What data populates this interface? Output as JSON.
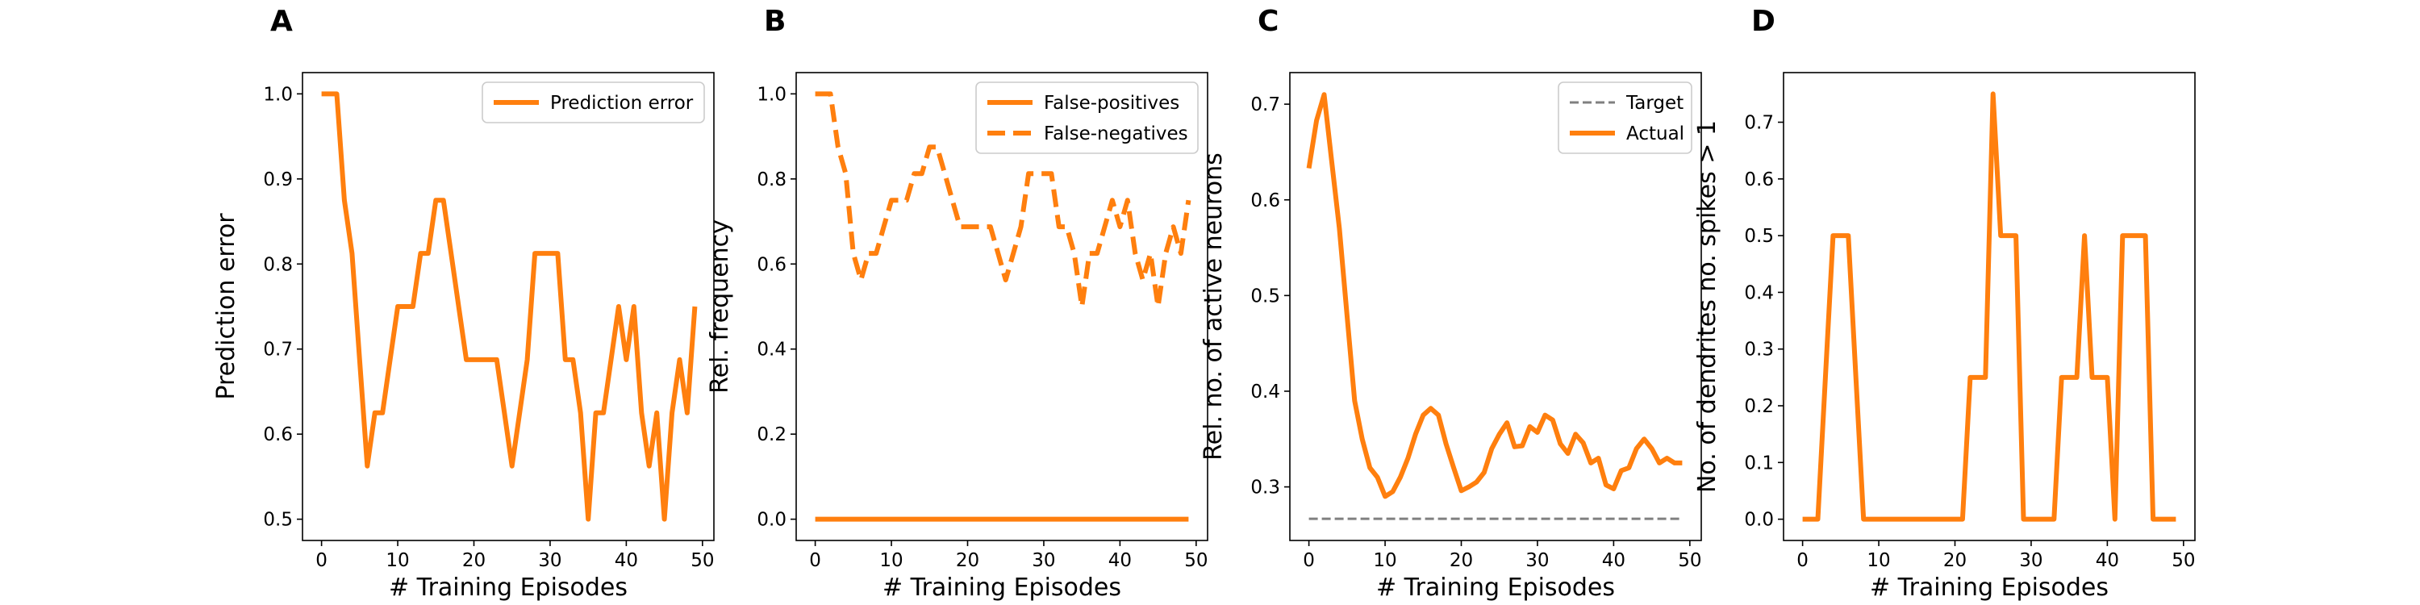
{
  "chart_data": [
    {
      "panel": "A",
      "type": "line",
      "xlabel": "# Training Episodes",
      "ylabel": "Prediction error",
      "xlim": [
        -2.5,
        51.5
      ],
      "ylim": [
        0.475,
        1.025
      ],
      "xticks": [
        0,
        10,
        20,
        30,
        40,
        50
      ],
      "yticks": [
        0.5,
        0.6,
        0.7,
        0.8,
        0.9,
        1.0
      ],
      "ytick_labels": [
        "0.5",
        "0.6",
        "0.7",
        "0.8",
        "0.9",
        "1.0"
      ],
      "legend": {
        "position": "top-right"
      },
      "series": [
        {
          "name": "Prediction error",
          "style": "solid",
          "x": [
            0,
            1,
            2,
            3,
            4,
            5,
            6,
            7,
            8,
            9,
            10,
            11,
            12,
            13,
            14,
            15,
            16,
            17,
            18,
            19,
            20,
            21,
            22,
            23,
            24,
            25,
            26,
            27,
            28,
            29,
            30,
            31,
            32,
            33,
            34,
            35,
            36,
            37,
            38,
            39,
            40,
            41,
            42,
            43,
            44,
            45,
            46,
            47,
            48,
            49
          ],
          "y": [
            1.0,
            1.0,
            1.0,
            0.875,
            0.8125,
            0.6875,
            0.5625,
            0.625,
            0.625,
            0.6875,
            0.75,
            0.75,
            0.75,
            0.8125,
            0.8125,
            0.875,
            0.875,
            0.8125,
            0.75,
            0.6875,
            0.6875,
            0.6875,
            0.6875,
            0.6875,
            0.625,
            0.5625,
            0.625,
            0.6875,
            0.8125,
            0.8125,
            0.8125,
            0.8125,
            0.6875,
            0.6875,
            0.625,
            0.5,
            0.625,
            0.625,
            0.6875,
            0.75,
            0.6875,
            0.75,
            0.625,
            0.5625,
            0.625,
            0.5,
            0.625,
            0.6875,
            0.625,
            0.75
          ]
        }
      ]
    },
    {
      "panel": "B",
      "type": "line",
      "xlabel": "# Training Episodes",
      "ylabel": "Rel. frequency",
      "xlim": [
        -2.5,
        51.5
      ],
      "ylim": [
        -0.05,
        1.05
      ],
      "xticks": [
        0,
        10,
        20,
        30,
        40,
        50
      ],
      "yticks": [
        0.0,
        0.2,
        0.4,
        0.6,
        0.8,
        1.0
      ],
      "ytick_labels": [
        "0.0",
        "0.2",
        "0.4",
        "0.6",
        "0.8",
        "1.0"
      ],
      "legend": {
        "position": "top-right"
      },
      "series": [
        {
          "name": "False-positives",
          "style": "solid",
          "x": [
            0,
            49
          ],
          "y": [
            0.0,
            0.0
          ]
        },
        {
          "name": "False-negatives",
          "style": "dashed",
          "x": [
            0,
            1,
            2,
            3,
            4,
            5,
            6,
            7,
            8,
            9,
            10,
            11,
            12,
            13,
            14,
            15,
            16,
            17,
            18,
            19,
            20,
            21,
            22,
            23,
            24,
            25,
            26,
            27,
            28,
            29,
            30,
            31,
            32,
            33,
            34,
            35,
            36,
            37,
            38,
            39,
            40,
            41,
            42,
            43,
            44,
            45,
            46,
            47,
            48,
            49
          ],
          "y": [
            1.0,
            1.0,
            1.0,
            0.875,
            0.8125,
            0.625,
            0.5625,
            0.625,
            0.625,
            0.6875,
            0.75,
            0.75,
            0.75,
            0.8125,
            0.8125,
            0.875,
            0.875,
            0.8125,
            0.75,
            0.6875,
            0.6875,
            0.6875,
            0.6875,
            0.6875,
            0.625,
            0.5625,
            0.625,
            0.6875,
            0.8125,
            0.8125,
            0.8125,
            0.8125,
            0.6875,
            0.6875,
            0.625,
            0.5,
            0.625,
            0.625,
            0.6875,
            0.75,
            0.6875,
            0.75,
            0.625,
            0.5625,
            0.625,
            0.5,
            0.625,
            0.6875,
            0.625,
            0.75
          ]
        }
      ]
    },
    {
      "panel": "C",
      "type": "line",
      "xlabel": "# Training Episodes",
      "ylabel": "Rel. no. of active neurons",
      "xlim": [
        -2.5,
        51.5
      ],
      "ylim": [
        0.244,
        0.733
      ],
      "xticks": [
        0,
        10,
        20,
        30,
        40,
        50
      ],
      "yticks": [
        0.3,
        0.4,
        0.5,
        0.6,
        0.7
      ],
      "ytick_labels": [
        "0.3",
        "0.4",
        "0.5",
        "0.6",
        "0.7"
      ],
      "legend": {
        "position": "top-right"
      },
      "series": [
        {
          "name": "Target",
          "style": "dashed-gray",
          "x": [
            0,
            49
          ],
          "y": [
            0.2667,
            0.2667
          ]
        },
        {
          "name": "Actual",
          "style": "solid",
          "x": [
            0,
            1,
            2,
            3,
            4,
            5,
            6,
            7,
            8,
            9,
            10,
            11,
            12,
            13,
            14,
            15,
            16,
            17,
            18,
            19,
            20,
            21,
            22,
            23,
            24,
            25,
            26,
            27,
            28,
            29,
            30,
            31,
            32,
            33,
            34,
            35,
            36,
            37,
            38,
            39,
            40,
            41,
            42,
            43,
            44,
            45,
            46,
            47,
            48,
            49
          ],
          "y": [
            0.633,
            0.683,
            0.71,
            0.64,
            0.57,
            0.48,
            0.39,
            0.35,
            0.32,
            0.31,
            0.29,
            0.295,
            0.31,
            0.33,
            0.355,
            0.375,
            0.382,
            0.375,
            0.345,
            0.32,
            0.296,
            0.3,
            0.305,
            0.315,
            0.34,
            0.355,
            0.367,
            0.342,
            0.343,
            0.363,
            0.357,
            0.375,
            0.37,
            0.345,
            0.335,
            0.355,
            0.346,
            0.325,
            0.33,
            0.302,
            0.298,
            0.317,
            0.32,
            0.34,
            0.35,
            0.34,
            0.325,
            0.33,
            0.325,
            0.325
          ]
        }
      ]
    },
    {
      "panel": "D",
      "type": "line",
      "xlabel": "# Training Episodes",
      "ylabel": "No. of dendrites no. spikes > 1",
      "xlim": [
        -2.5,
        51.5
      ],
      "ylim": [
        -0.0375,
        0.7875
      ],
      "xticks": [
        0,
        10,
        20,
        30,
        40,
        50
      ],
      "yticks": [
        0.0,
        0.1,
        0.2,
        0.3,
        0.4,
        0.5,
        0.6,
        0.7
      ],
      "ytick_labels": [
        "0.0",
        "0.1",
        "0.2",
        "0.3",
        "0.4",
        "0.5",
        "0.6",
        "0.7"
      ],
      "series": [
        {
          "name": "",
          "style": "solid",
          "x": [
            0,
            1,
            2,
            3,
            4,
            5,
            6,
            7,
            8,
            9,
            10,
            11,
            12,
            13,
            14,
            15,
            16,
            17,
            18,
            19,
            20,
            21,
            22,
            23,
            24,
            25,
            26,
            27,
            28,
            29,
            30,
            31,
            32,
            33,
            34,
            35,
            36,
            37,
            38,
            39,
            40,
            41,
            42,
            43,
            44,
            45,
            46,
            47,
            48,
            49
          ],
          "y": [
            0,
            0,
            0,
            0.25,
            0.5,
            0.5,
            0.5,
            0.25,
            0,
            0,
            0,
            0,
            0,
            0,
            0,
            0,
            0,
            0,
            0,
            0,
            0,
            0,
            0.25,
            0.25,
            0.25,
            0.75,
            0.5,
            0.5,
            0.5,
            0,
            0,
            0,
            0,
            0,
            0.25,
            0.25,
            0.25,
            0.5,
            0.25,
            0.25,
            0.25,
            0,
            0.5,
            0.5,
            0.5,
            0.5,
            0,
            0,
            0,
            0
          ]
        }
      ]
    }
  ],
  "colors": {
    "line": "#ff7f0e",
    "target": "#808080",
    "axes": "#000000",
    "legend_frame": "#cccccc"
  }
}
